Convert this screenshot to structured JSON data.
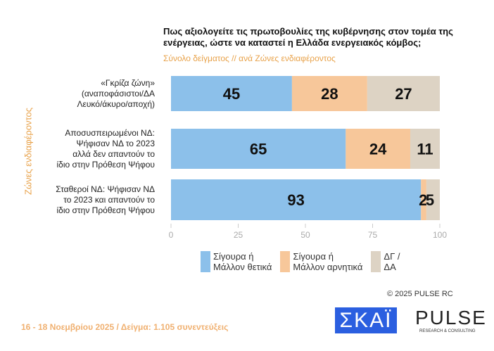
{
  "chart_data": {
    "type": "bar",
    "stacked": true,
    "orientation": "horizontal",
    "title": "Πως αξιολογείτε τις πρωτοβουλίες της κυβέρνησης στον τομέα της ενέργειας, ώστε να καταστεί η Ελλάδα ενεργειακός κόμβος;",
    "subtitle": "Σύνολο δείγματος // ανά Ζώνες ενδιαφέροντος",
    "ylabel": "Ζώνες ενδιαφέροντος",
    "categories": [
      "«Γκρίζα ζώνη» (αναποφάσιστοι/ΔΑ Λευκό/άκυρο/αποχή)",
      "Αποσυσπειρωμένοι ΝΔ: Ψήφισαν ΝΔ το 2023 αλλά δεν απαντούν το ίδιο στην Πρόθεση Ψήφου",
      "Σταθεροί ΝΔ: Ψήφισαν ΝΔ το 2023 και απαντούν το ίδιο στην Πρόθεση Ψήφου"
    ],
    "category_lines": [
      [
        "«Γκρίζα ζώνη»",
        "(αναποφάσιστοι/ΔΑ",
        "Λευκό/άκυρο/αποχή)"
      ],
      [
        "Αποσυσπειρωμένοι ΝΔ:",
        "Ψήφισαν ΝΔ το 2023",
        "αλλά δεν απαντούν το",
        "ίδιο στην Πρόθεση Ψήφου"
      ],
      [
        "Σταθεροί ΝΔ: Ψήφισαν ΝΔ",
        "το 2023 και απαντούν το",
        "ίδιο στην Πρόθεση Ψήφου"
      ]
    ],
    "series": [
      {
        "name": "Σίγουρα ή Μάλλον θετικά",
        "name_lines": [
          "Σίγουρα ή",
          "Μάλλον θετικά"
        ],
        "color": "#8cc0ea",
        "values": [
          45,
          65,
          93
        ]
      },
      {
        "name": "Σίγουρα ή Μάλλον αρνητικά",
        "name_lines": [
          "Σίγουρα ή",
          "Μάλλον αρνητικά"
        ],
        "color": "#f7c79a",
        "values": [
          28,
          24,
          2
        ]
      },
      {
        "name": "ΔΓ / ΔΑ",
        "name_lines": [
          "ΔΓ /",
          "ΔΑ"
        ],
        "color": "#ddd3c4",
        "values": [
          27,
          11,
          5
        ]
      }
    ],
    "xlim": [
      0,
      100
    ],
    "xticks": [
      0,
      25,
      50,
      75,
      100
    ],
    "legend": "bottom"
  },
  "footer": {
    "copyright": "©  2025  PULSE RC",
    "fieldwork": "16 - 18 Νοεμβρίου 2025  /  Δείγμα:  1.105 συνεντεύξεις",
    "logo_skai": "ΣΚΑΪ",
    "logo_pulse": "PULSE",
    "logo_pulse_sub": "RESEARCH & CONSULTING"
  }
}
